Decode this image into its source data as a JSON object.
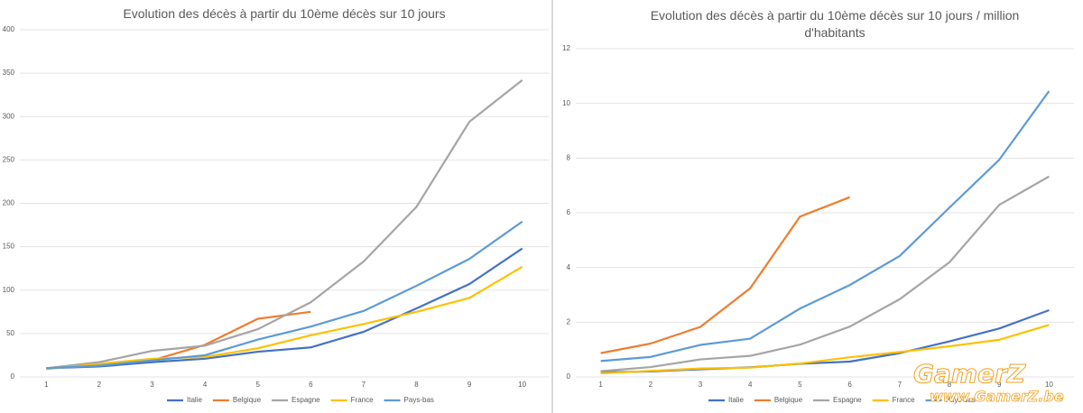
{
  "chart_data": [
    {
      "type": "line",
      "title": "Evolution des décès à partir du 10ème décès sur 10 jours",
      "x": [
        1,
        2,
        3,
        4,
        5,
        6,
        7,
        8,
        9,
        10
      ],
      "xlim": [
        0.5,
        10.5
      ],
      "ylim": [
        0,
        400
      ],
      "yticks": [
        0,
        50,
        100,
        150,
        200,
        250,
        300,
        350,
        400
      ],
      "grid": true,
      "legend": "bottom",
      "series": [
        {
          "name": "Italie",
          "color": "#4472c4",
          "values": [
            10,
            12,
            17,
            21,
            29,
            34,
            52,
            79,
            107,
            148
          ]
        },
        {
          "name": "Belgique",
          "color": "#ed7d31",
          "values": [
            10,
            14,
            19,
            37,
            67,
            75,
            null,
            null,
            null,
            null
          ]
        },
        {
          "name": "Espagne",
          "color": "#a5a5a5",
          "values": [
            10,
            17,
            30,
            36,
            55,
            86,
            133,
            196,
            294,
            342
          ]
        },
        {
          "name": "France",
          "color": "#ffc000",
          "values": [
            9,
            15,
            21,
            23,
            33,
            48,
            61,
            75,
            91,
            127
          ]
        },
        {
          "name": "Pays-bas",
          "color": "#5b9bd5",
          "values": [
            10,
            13,
            19,
            25,
            43,
            58,
            76,
            105,
            136,
            179
          ]
        }
      ]
    },
    {
      "type": "line",
      "title": "Evolution des décès à partir du 10ème décès sur 10 jours / million d'habitants",
      "x": [
        1,
        2,
        3,
        4,
        5,
        6,
        7,
        8,
        9,
        10
      ],
      "xlim": [
        0.5,
        10.5
      ],
      "ylim": [
        0,
        12
      ],
      "yticks": [
        0,
        2,
        4,
        6,
        8,
        10,
        12
      ],
      "grid": true,
      "legend": "bottom",
      "series": [
        {
          "name": "Italie",
          "color": "#4472c4",
          "values": [
            0.17,
            0.2,
            0.28,
            0.35,
            0.48,
            0.56,
            0.87,
            1.3,
            1.77,
            2.44
          ]
        },
        {
          "name": "Belgique",
          "color": "#ed7d31",
          "values": [
            0.87,
            1.22,
            1.83,
            3.24,
            5.86,
            6.57,
            null,
            null,
            null,
            null
          ]
        },
        {
          "name": "Espagne",
          "color": "#a5a5a5",
          "values": [
            0.21,
            0.36,
            0.64,
            0.77,
            1.18,
            1.84,
            2.84,
            4.19,
            6.29,
            7.33
          ]
        },
        {
          "name": "France",
          "color": "#ffc000",
          "values": [
            0.13,
            0.22,
            0.31,
            0.34,
            0.49,
            0.72,
            0.91,
            1.12,
            1.36,
            1.9
          ]
        },
        {
          "name": "Pays-bas",
          "color": "#5b9bd5",
          "values": [
            0.58,
            0.73,
            1.17,
            1.4,
            2.5,
            3.36,
            4.42,
            6.19,
            7.94,
            10.45
          ]
        }
      ]
    }
  ],
  "watermark": {
    "title": "GamerZ",
    "url": "www.GamerZ.be"
  }
}
